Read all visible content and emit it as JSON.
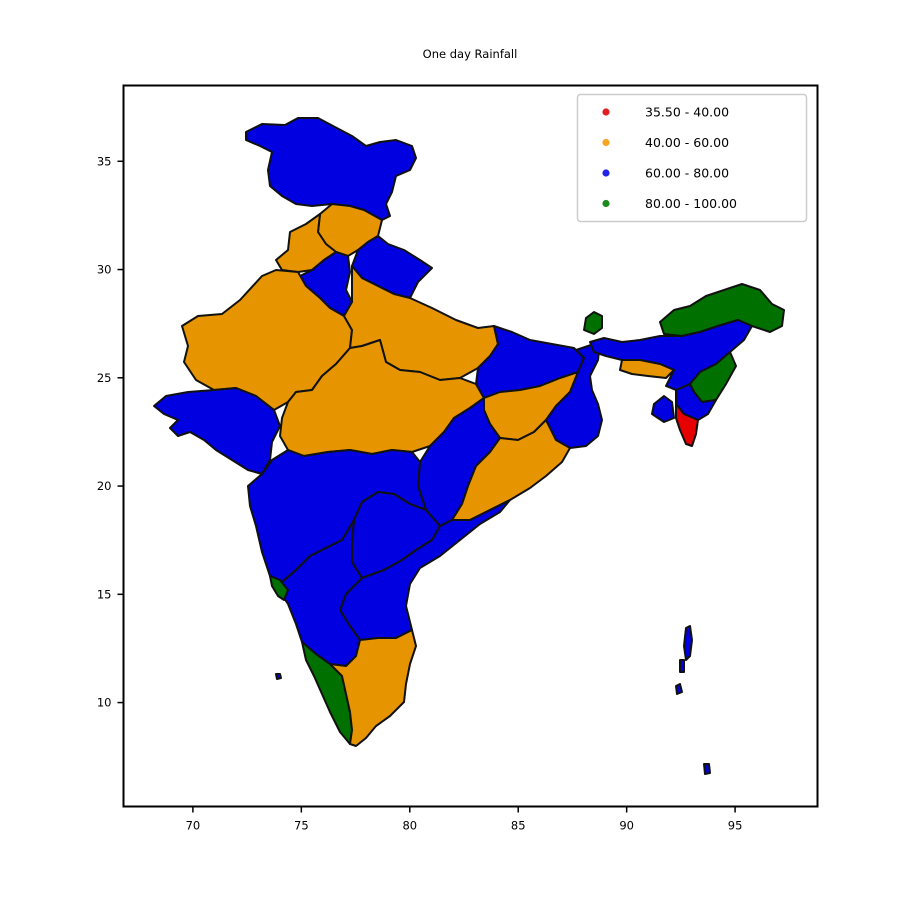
{
  "chart_data": {
    "type": "choropleth",
    "title": "One day Rainfall",
    "xlabel": "",
    "ylabel": "",
    "xlim": [
      66.8,
      98.8
    ],
    "ylim": [
      5.2,
      38.5
    ],
    "x_ticks": [
      70,
      75,
      80,
      85,
      90,
      95
    ],
    "y_ticks": [
      10,
      15,
      20,
      25,
      30,
      35
    ],
    "grid": false,
    "legend_position": "top-right",
    "legend": [
      {
        "label": "35.50 - 40.00",
        "color": "#e02020"
      },
      {
        "label": "40.00 - 60.00",
        "color": "#f5a623"
      },
      {
        "label": "60.00 - 80.00",
        "color": "#2323e8"
      },
      {
        "label": "80.00 - 100.00",
        "color": "#1e8a1e"
      }
    ],
    "class_fills": {
      "35.50 - 40.00": "#e60000",
      "40.00 - 60.00": "#e69500",
      "60.00 - 80.00": "#0000e0",
      "80.00 - 100.00": "#007000"
    },
    "regions": [
      {
        "name": "Jammu and Kashmir",
        "class": "60.00 - 80.00"
      },
      {
        "name": "Himachal Pradesh",
        "class": "40.00 - 60.00"
      },
      {
        "name": "Punjab",
        "class": "40.00 - 60.00"
      },
      {
        "name": "Haryana",
        "class": "60.00 - 80.00"
      },
      {
        "name": "Uttarakhand",
        "class": "60.00 - 80.00"
      },
      {
        "name": "Rajasthan",
        "class": "40.00 - 60.00"
      },
      {
        "name": "Uttar Pradesh",
        "class": "40.00 - 60.00"
      },
      {
        "name": "Gujarat",
        "class": "60.00 - 80.00"
      },
      {
        "name": "Madhya Pradesh",
        "class": "40.00 - 60.00"
      },
      {
        "name": "Bihar",
        "class": "60.00 - 80.00"
      },
      {
        "name": "Jharkhand",
        "class": "40.00 - 60.00"
      },
      {
        "name": "West Bengal",
        "class": "60.00 - 80.00"
      },
      {
        "name": "Chhattisgarh",
        "class": "60.00 - 80.00"
      },
      {
        "name": "Odisha",
        "class": "40.00 - 60.00"
      },
      {
        "name": "Maharashtra",
        "class": "60.00 - 80.00"
      },
      {
        "name": "Telangana",
        "class": "60.00 - 80.00"
      },
      {
        "name": "Andhra Pradesh",
        "class": "60.00 - 80.00"
      },
      {
        "name": "Karnataka",
        "class": "60.00 - 80.00"
      },
      {
        "name": "Goa",
        "class": "80.00 - 100.00"
      },
      {
        "name": "Kerala",
        "class": "80.00 - 100.00"
      },
      {
        "name": "Tamil Nadu",
        "class": "40.00 - 60.00"
      },
      {
        "name": "Sikkim",
        "class": "80.00 - 100.00"
      },
      {
        "name": "Arunachal Pradesh",
        "class": "80.00 - 100.00"
      },
      {
        "name": "Assam",
        "class": "60.00 - 80.00"
      },
      {
        "name": "Meghalaya",
        "class": "40.00 - 60.00"
      },
      {
        "name": "Nagaland",
        "class": "80.00 - 100.00"
      },
      {
        "name": "Manipur",
        "class": "60.00 - 80.00"
      },
      {
        "name": "Mizoram",
        "class": "35.50 - 40.00"
      },
      {
        "name": "Tripura",
        "class": "60.00 - 80.00"
      },
      {
        "name": "Andaman and Nicobar Islands",
        "class": "60.00 - 80.00"
      },
      {
        "name": "Lakshadweep",
        "class": "60.00 - 80.00"
      }
    ]
  }
}
